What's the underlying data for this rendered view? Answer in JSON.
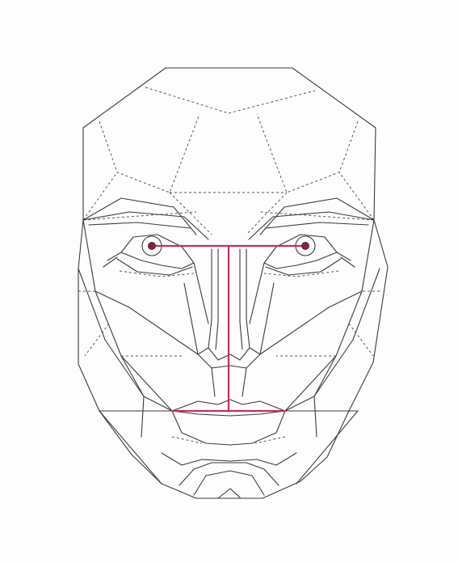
{
  "figure": {
    "subject": "face-mask-wireframe",
    "colors": {
      "background": "#fdfdfd",
      "outline": "#3a3a3a",
      "dashed": "#555555",
      "measure": "#c0325a",
      "pupil_fill": "#8a1f3f"
    }
  }
}
